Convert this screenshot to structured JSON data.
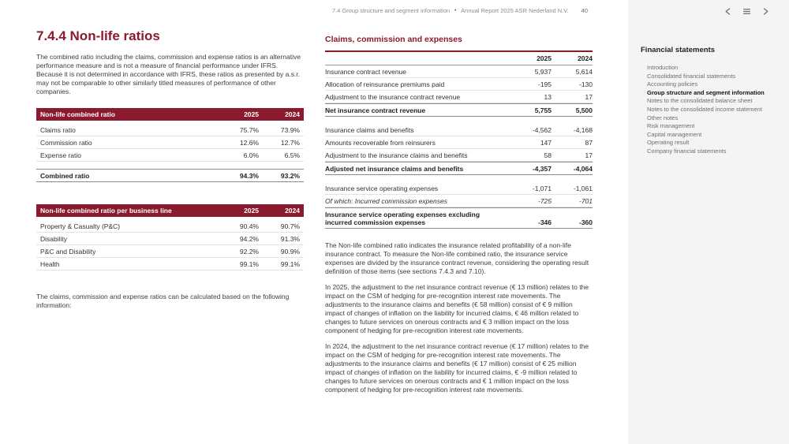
{
  "topbar": {
    "breadcrumb": "7.4 Group structure and segment information",
    "separator": "•",
    "report_title": "Annual Report 2025 ASR Nederland N.V.",
    "page_number": "40",
    "icons": [
      "previous-arrow-icon",
      "menu-icon",
      "next-arrow-icon"
    ],
    "accent_color": "#8b1a2e"
  },
  "left": {
    "section_title": "7.4.4 Non-life ratios",
    "intro": "The combined ratio including the claims, commission and expense ratios is an alternative performance measure and is not a measure of financial performance under IFRS. Because it is not determined in accordance with IFRS, these ratios as presented by a.s.r. may not be comparable to other similarly titled measures of performance of other companies.",
    "table1": {
      "title": "Non-life combined ratio",
      "years": [
        "2025",
        "2024"
      ],
      "rows": [
        {
          "label": "Claims ratio",
          "v2025": "75.7%",
          "v2024": "73.9%",
          "bold": false
        },
        {
          "label": "Commission ratio",
          "v2025": "12.6%",
          "v2024": "12.7%",
          "bold": false
        },
        {
          "label": "Expense ratio",
          "v2025": "6.0%",
          "v2024": "6.5%",
          "bold": false
        },
        {
          "label": "Combined ratio",
          "v2025": "94.3%",
          "v2024": "93.2%",
          "bold": true
        }
      ]
    },
    "table2": {
      "title": "Non-life combined ratio per business line",
      "years": [
        "2025",
        "2024"
      ],
      "rows": [
        {
          "label": "Property & Casualty (P&C)",
          "v2025": "90.4%",
          "v2024": "90.7%",
          "bold": false
        },
        {
          "label": "Disability",
          "v2025": "94.2%",
          "v2024": "91.3%",
          "bold": false
        },
        {
          "label": "P&C and Disability",
          "v2025": "92.2%",
          "v2024": "90.9%",
          "bold": false
        },
        {
          "label": "Health",
          "v2025": "99.1%",
          "v2024": "99.1%",
          "bold": false
        }
      ]
    },
    "note": "The claims, commission and expense ratios can be calculated based on the following information:"
  },
  "middle": {
    "section_title": "Claims, commission and expenses",
    "table": {
      "years": [
        "2025",
        "2024"
      ],
      "rows": [
        {
          "label": "Insurance contract revenue",
          "v2025": "5,937",
          "v2024": "5,614",
          "style": "normal",
          "gap": false
        },
        {
          "label": "Allocation of reinsurance premiums paid",
          "v2025": "-195",
          "v2024": "-130",
          "style": "normal",
          "gap": false
        },
        {
          "label": "Adjustment to the insurance contract revenue",
          "v2025": "13",
          "v2024": "17",
          "style": "normal",
          "gap": false
        },
        {
          "label": "Net insurance contract revenue",
          "v2025": "5,755",
          "v2024": "5,500",
          "style": "total",
          "gap": false
        },
        {
          "label": "Insurance claims and benefits",
          "v2025": "-4,562",
          "v2024": "-4,168",
          "style": "normal",
          "gap": true
        },
        {
          "label": "Amounts recoverable from reinsurers",
          "v2025": "147",
          "v2024": "87",
          "style": "normal",
          "gap": false
        },
        {
          "label": "Adjustment to the insurance claims and benefits",
          "v2025": "58",
          "v2024": "17",
          "style": "normal",
          "gap": false
        },
        {
          "label": "Adjusted net insurance claims and benefits",
          "v2025": "-4,357",
          "v2024": "-4,064",
          "style": "total",
          "gap": false
        },
        {
          "label": "Insurance service operating expenses",
          "v2025": "-1,071",
          "v2024": "-1,061",
          "style": "normal",
          "gap": true
        },
        {
          "label": "Of which: Incurred commission expenses",
          "v2025": "-725",
          "v2024": "-701",
          "style": "italic",
          "gap": false
        },
        {
          "label": "Insurance service operating expenses excluding incurred commission expenses",
          "v2025": "-346",
          "v2024": "-360",
          "style": "total",
          "gap": false
        }
      ]
    },
    "paragraphs": [
      "The Non-life combined ratio indicates the insurance related profitability of a non-life insurance contract. To measure the Non-life combined ratio, the insurance service expenses are divided by the insurance contract revenue, considering the operating result definition of those items (see sections 7.4.3 and 7.10).",
      "In 2025, the adjustment to the net insurance contract revenue (€ 13 million) relates to the impact on the CSM of hedging for pre-recognition interest rate movements. The adjustments to the insurance claims and benefits (€ 58 million) consist of € 9 million impact of changes of inflation on the liability for incurred claims, € 46 million related to changes to future services on onerous contracts and € 3 million impact on the loss component of hedging for pre-recognition interest rate movements.",
      "In 2024, the adjustment to the net insurance contract revenue (€ 17 million) relates to the impact on the CSM of hedging for pre-recognition interest rate movements. The adjustments to the insurance claims and benefits (€ 17 million) consist of € 25 million impact of changes of inflation on the liability for incurred claims, € -9 million related to changes to future services on onerous contracts and € 1 million impact on the loss component of hedging for pre-recognition interest rate movements."
    ]
  },
  "sidebar": {
    "title": "Financial statements",
    "items": [
      {
        "label": "Introduction",
        "active": false
      },
      {
        "label": "Consolidated financial statements",
        "active": false
      },
      {
        "label": "Accounting policies",
        "active": false
      },
      {
        "label": "Group structure and segment information",
        "active": true
      },
      {
        "label": "Notes to the consolidated balance sheet",
        "active": false
      },
      {
        "label": "Notes to the consolidated income statement",
        "active": false
      },
      {
        "label": "Other notes",
        "active": false
      },
      {
        "label": "Risk management",
        "active": false
      },
      {
        "label": "Capital management",
        "active": false
      },
      {
        "label": "Operating result",
        "active": false
      },
      {
        "label": "Company financial statements",
        "active": false
      }
    ]
  }
}
